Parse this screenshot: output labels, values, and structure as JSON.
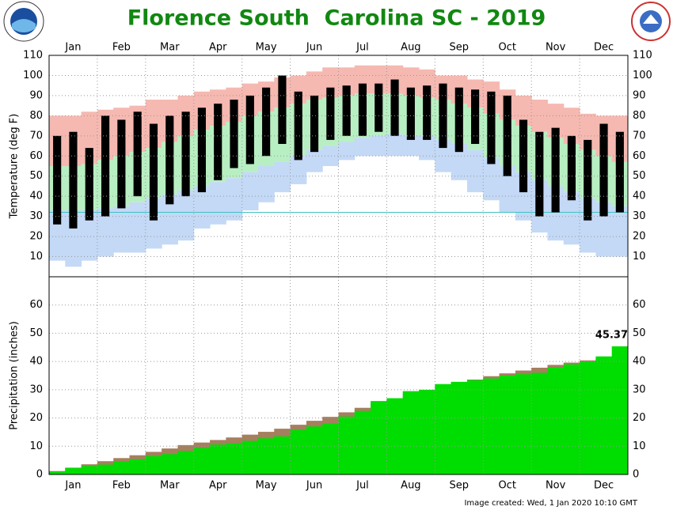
{
  "title": "Florence South  Carolina SC - 2019",
  "footer": "Image created: Wed, 1 Jan 2020 10:10 GMT",
  "chart_data": [
    {
      "type": "temperature-bands",
      "ylabel": "Temperature (deg F)",
      "ylim": [
        0,
        110
      ],
      "yticks": [
        10,
        20,
        30,
        40,
        50,
        60,
        70,
        80,
        90,
        100,
        110
      ],
      "grid": true,
      "reference_line": {
        "value": 32,
        "color": "#40c0c0"
      },
      "categories": [
        null,
        "Jan",
        null,
        null,
        "Feb",
        null,
        null,
        "Mar",
        null,
        null,
        "Apr",
        null,
        null,
        "May",
        null,
        null,
        "Jun",
        null,
        null,
        "Jul",
        null,
        null,
        "Aug",
        null,
        null,
        "Sep",
        null,
        null,
        "Oct",
        null,
        null,
        "Nov",
        null,
        null,
        "Dec",
        null
      ],
      "record_high": {
        "color": "#f5b9b1",
        "values": [
          80,
          80,
          82,
          83,
          84,
          85,
          88,
          88,
          90,
          92,
          93,
          94,
          96,
          97,
          99,
          100,
          102,
          104,
          104,
          105,
          105,
          105,
          104,
          103,
          100,
          100,
          98,
          97,
          93,
          90,
          88,
          86,
          84,
          81,
          80,
          80
        ]
      },
      "normal_high": {
        "color": "#b8efc2",
        "values": [
          55,
          55,
          56,
          58,
          60,
          62,
          64,
          67,
          70,
          73,
          75,
          77,
          80,
          82,
          84,
          86,
          88,
          89,
          90,
          91,
          91,
          91,
          90,
          89,
          88,
          86,
          84,
          81,
          78,
          75,
          72,
          69,
          66,
          63,
          60,
          57
        ]
      },
      "normal_low": {
        "color": "#c3d9f6",
        "values": [
          33,
          33,
          33,
          34,
          35,
          37,
          39,
          41,
          43,
          45,
          47,
          49,
          52,
          55,
          57,
          60,
          63,
          65,
          67,
          69,
          70,
          71,
          70,
          70,
          68,
          66,
          63,
          59,
          55,
          52,
          48,
          45,
          42,
          39,
          37,
          35
        ]
      },
      "record_low": {
        "values": [
          8,
          5,
          8,
          10,
          12,
          12,
          14,
          16,
          18,
          24,
          26,
          28,
          33,
          37,
          42,
          46,
          52,
          55,
          58,
          60,
          60,
          60,
          60,
          58,
          52,
          48,
          42,
          38,
          32,
          28,
          22,
          18,
          16,
          12,
          10,
          10
        ]
      },
      "observed_high": {
        "color": "#000000",
        "values": [
          70,
          72,
          64,
          80,
          78,
          82,
          76,
          80,
          82,
          84,
          86,
          88,
          90,
          94,
          100,
          92,
          90,
          94,
          95,
          96,
          96,
          98,
          94,
          95,
          96,
          94,
          93,
          92,
          90,
          78,
          72,
          74,
          70,
          68,
          76,
          72
        ]
      },
      "observed_low": {
        "values": [
          26,
          24,
          28,
          30,
          34,
          40,
          28,
          36,
          40,
          42,
          48,
          54,
          56,
          60,
          66,
          58,
          62,
          68,
          70,
          70,
          72,
          70,
          68,
          68,
          64,
          62,
          66,
          56,
          50,
          42,
          30,
          32,
          38,
          28,
          30,
          32
        ]
      }
    },
    {
      "type": "cumulative-area",
      "ylabel": "Precipitation (inches)",
      "ylim": [
        0,
        70
      ],
      "yticks": [
        0,
        10,
        20,
        30,
        40,
        50,
        60
      ],
      "grid": true,
      "categories": [
        null,
        "Jan",
        null,
        null,
        "Feb",
        null,
        null,
        "Mar",
        null,
        null,
        "Apr",
        null,
        null,
        "May",
        null,
        null,
        "Jun",
        null,
        null,
        "Jul",
        null,
        null,
        "Aug",
        null,
        null,
        "Sep",
        null,
        null,
        "Oct",
        null,
        null,
        "Nov",
        null,
        null,
        "Dec",
        null
      ],
      "normal": {
        "color": "#a57f5e",
        "values": [
          1.2,
          2.4,
          3.6,
          4.7,
          5.8,
          6.8,
          8.0,
          9.2,
          10.4,
          11.3,
          12.2,
          13.1,
          14.1,
          15.1,
          16.2,
          17.6,
          19.0,
          20.4,
          22.0,
          23.6,
          25.2,
          26.8,
          28.2,
          29.6,
          31.0,
          32.4,
          33.6,
          34.8,
          35.8,
          36.8,
          37.8,
          38.8,
          39.6,
          40.4,
          41.0,
          41.6
        ]
      },
      "observed": {
        "color": "#00dd00",
        "values": [
          1.0,
          2.3,
          3.0,
          3.5,
          4.6,
          5.4,
          6.5,
          7.2,
          8.3,
          9.4,
          10.6,
          11.0,
          11.9,
          12.8,
          13.5,
          15.8,
          17.0,
          18.0,
          20.5,
          22.5,
          26.0,
          27.0,
          29.5,
          30.0,
          32.0,
          32.8,
          33.4,
          34.0,
          35.0,
          35.5,
          36.0,
          37.8,
          39.0,
          40.0,
          41.8,
          45.37
        ]
      }
    }
  ]
}
